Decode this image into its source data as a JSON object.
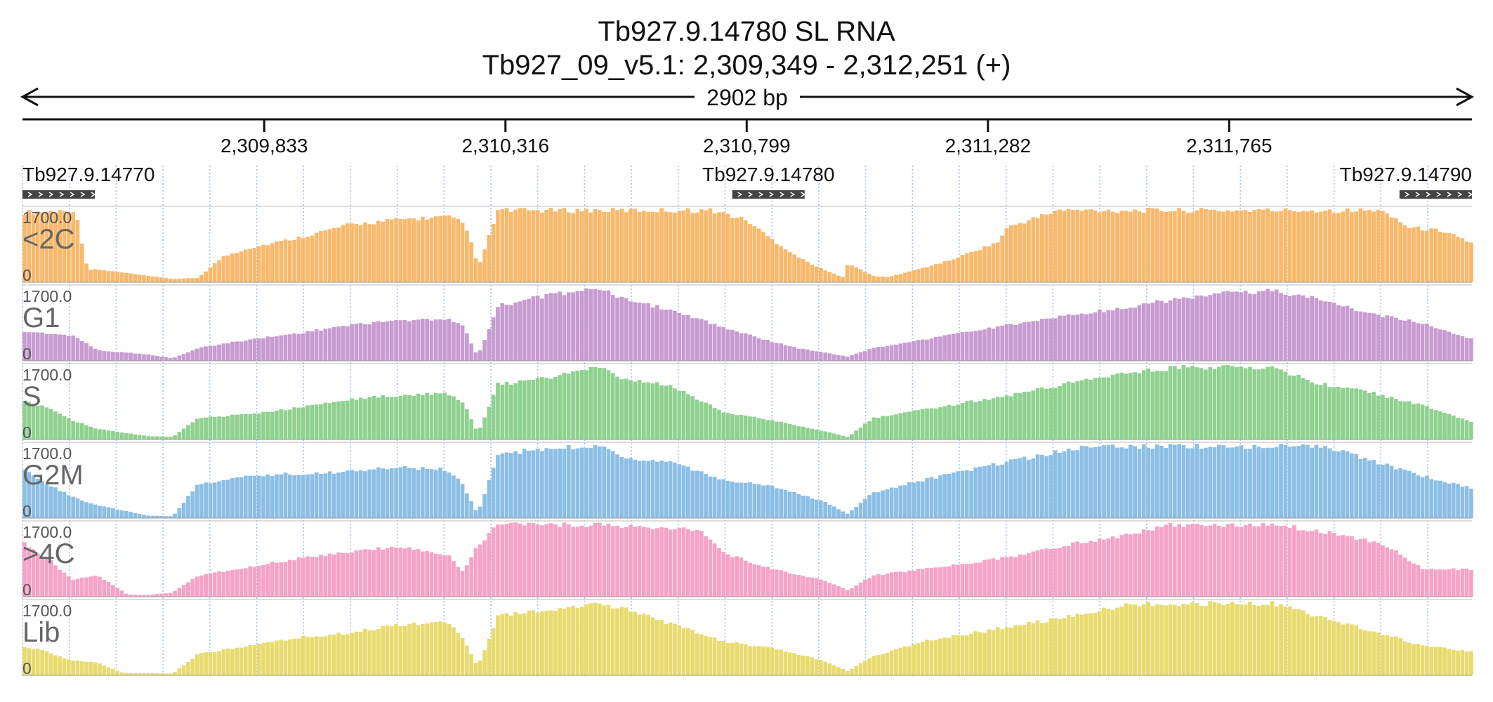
{
  "header": {
    "title": "Tb927.9.14780  SL RNA",
    "subtitle": "Tb927_09_v5.1: 2,309,349 - 2,312,251 (+)",
    "span_label": "2902 bp"
  },
  "chart_data": {
    "type": "bar",
    "region": {
      "chrom": "Tb927_09_v5.1",
      "start": 2309349,
      "end": 2312251,
      "strand": "+"
    },
    "axis_ticks": [
      {
        "pos": 2309833,
        "label": "2,309,833"
      },
      {
        "pos": 2310316,
        "label": "2,310,316"
      },
      {
        "pos": 2310799,
        "label": "2,310,799"
      },
      {
        "pos": 2311282,
        "label": "2,311,282"
      },
      {
        "pos": 2311765,
        "label": "2,311,765"
      }
    ],
    "genes": [
      {
        "name": "Tb927.9.14770",
        "start": 2309349,
        "end": 2309494,
        "strand": "+"
      },
      {
        "name": "Tb927.9.14780",
        "start": 2310770,
        "end": 2310915,
        "strand": "+"
      },
      {
        "name": "Tb927.9.14790",
        "start": 2312106,
        "end": 2312251,
        "strand": "+"
      }
    ],
    "ylim": [
      0,
      1700
    ],
    "y_max_label": "1700.0",
    "y_min_label": "0",
    "grid": true,
    "series": [
      {
        "name": "<2C",
        "color": "#f9b96d",
        "positions": [
          2309349,
          2309455,
          2309480,
          2309500,
          2309600,
          2309650,
          2309700,
          2309750,
          2309800,
          2309900,
          2310000,
          2310100,
          2310200,
          2310230,
          2310250,
          2310260,
          2310300,
          2310400,
          2310500,
          2310730,
          2310760,
          2310800,
          2310850,
          2310900,
          2310950,
          2310990,
          2311000,
          2311050,
          2311080,
          2311100,
          2311200,
          2311300,
          2311320,
          2311420,
          2311500,
          2311700,
          2311900,
          2312000,
          2312050,
          2312080,
          2312120,
          2312200,
          2312251
        ],
        "values": [
          1650,
          1700,
          300,
          300,
          150,
          80,
          100,
          600,
          800,
          1050,
          1350,
          1480,
          1550,
          1400,
          900,
          300,
          1700,
          1700,
          1700,
          1700,
          1600,
          1450,
          1000,
          600,
          300,
          120,
          450,
          150,
          120,
          180,
          500,
          950,
          1300,
          1700,
          1700,
          1700,
          1700,
          1700,
          1700,
          1650,
          1300,
          1200,
          900
        ]
      },
      {
        "name": "G1",
        "color": "#c79cd1",
        "positions": [
          2309349,
          2309450,
          2309500,
          2309600,
          2309650,
          2309700,
          2309800,
          2309900,
          2310000,
          2310100,
          2310200,
          2310230,
          2310260,
          2310300,
          2310400,
          2310500,
          2310550,
          2310650,
          2310750,
          2310850,
          2310900,
          2311000,
          2311050,
          2311150,
          2311250,
          2311350,
          2311450,
          2311550,
          2311650,
          2311750,
          2311850,
          2311950,
          2312050,
          2312150,
          2312251
        ],
        "values": [
          700,
          600,
          250,
          150,
          60,
          300,
          500,
          650,
          850,
          950,
          1000,
          850,
          100,
          1300,
          1550,
          1750,
          1450,
          1200,
          800,
          450,
          300,
          100,
          300,
          500,
          700,
          900,
          1100,
          1250,
          1450,
          1600,
          1650,
          1450,
          1100,
          900,
          500
        ]
      },
      {
        "name": "S",
        "color": "#8fd18f",
        "positions": [
          2309349,
          2309400,
          2309450,
          2309500,
          2309600,
          2309650,
          2309700,
          2309800,
          2309900,
          2310000,
          2310100,
          2310200,
          2310230,
          2310260,
          2310300,
          2310400,
          2310450,
          2310500,
          2310550,
          2310650,
          2310750,
          2310850,
          2310950,
          2311000,
          2311050,
          2311150,
          2311250,
          2311350,
          2311450,
          2311550,
          2311650,
          2311750,
          2311850,
          2311950,
          2312050,
          2312150,
          2312251
        ],
        "values": [
          900,
          750,
          450,
          250,
          80,
          60,
          500,
          600,
          750,
          950,
          1050,
          1100,
          900,
          150,
          1300,
          1450,
          1600,
          1700,
          1450,
          1250,
          650,
          450,
          200,
          60,
          500,
          700,
          900,
          1100,
          1350,
          1550,
          1700,
          1700,
          1700,
          1300,
          1100,
          800,
          400
        ]
      },
      {
        "name": "G2M",
        "color": "#8cbfe6",
        "positions": [
          2309349,
          2309400,
          2309450,
          2309500,
          2309600,
          2309650,
          2309700,
          2309800,
          2309900,
          2310000,
          2310100,
          2310200,
          2310230,
          2310260,
          2310300,
          2310400,
          2310500,
          2310550,
          2310650,
          2310750,
          2310850,
          2310950,
          2311000,
          2311050,
          2311150,
          2311250,
          2311350,
          2311450,
          2311550,
          2311650,
          2311750,
          2311850,
          2311950,
          2312050,
          2312150,
          2312251
        ],
        "values": [
          1200,
          800,
          500,
          300,
          60,
          40,
          800,
          1000,
          1050,
          1100,
          1200,
          1150,
          800,
          100,
          1500,
          1650,
          1700,
          1450,
          1300,
          900,
          750,
          400,
          100,
          600,
          900,
          1150,
          1400,
          1650,
          1700,
          1700,
          1700,
          1700,
          1700,
          1350,
          1000,
          700
        ]
      },
      {
        "name": ">4C",
        "color": "#f5a3c7",
        "positions": [
          2309349,
          2309400,
          2309450,
          2309500,
          2309560,
          2309600,
          2309650,
          2309700,
          2309800,
          2309900,
          2310000,
          2310100,
          2310200,
          2310230,
          2310260,
          2310300,
          2310350,
          2310500,
          2310700,
          2310760,
          2310850,
          2310950,
          2311000,
          2311050,
          2311150,
          2311250,
          2311350,
          2311450,
          2311550,
          2311650,
          2311850,
          2311950,
          2312050,
          2312100,
          2312150,
          2312251
        ],
        "values": [
          1300,
          900,
          400,
          500,
          50,
          40,
          100,
          500,
          700,
          900,
          1050,
          1200,
          1000,
          600,
          1200,
          1700,
          1700,
          1700,
          1600,
          1000,
          650,
          400,
          150,
          500,
          650,
          800,
          1000,
          1250,
          1450,
          1700,
          1700,
          1550,
          1300,
          1050,
          650,
          650
        ]
      },
      {
        "name": "Lib",
        "color": "#e8db6f",
        "positions": [
          2309349,
          2309400,
          2309450,
          2309500,
          2309550,
          2309650,
          2309700,
          2309800,
          2309900,
          2310000,
          2310100,
          2310200,
          2310230,
          2310260,
          2310300,
          2310400,
          2310500,
          2310550,
          2310650,
          2310750,
          2310850,
          2310950,
          2311000,
          2311050,
          2311150,
          2311250,
          2311350,
          2311450,
          2311550,
          2311650,
          2311750,
          2311850,
          2311950,
          2312050,
          2312150,
          2312251
        ],
        "values": [
          700,
          550,
          350,
          300,
          60,
          40,
          500,
          700,
          900,
          1000,
          1200,
          1250,
          900,
          200,
          1400,
          1550,
          1700,
          1600,
          1200,
          800,
          650,
          350,
          100,
          450,
          800,
          1000,
          1200,
          1400,
          1650,
          1700,
          1700,
          1700,
          1350,
          1050,
          700,
          550
        ]
      }
    ]
  }
}
